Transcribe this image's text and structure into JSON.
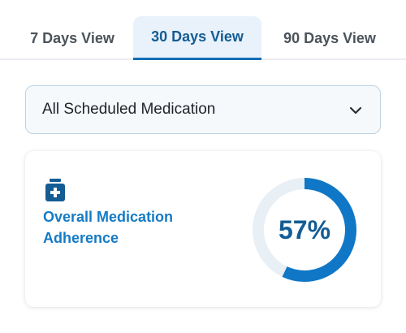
{
  "tabs": [
    {
      "label": "7 Days View",
      "selected": false
    },
    {
      "label": "30 Days View",
      "selected": true
    },
    {
      "label": "90 Days View",
      "selected": false
    }
  ],
  "filter": {
    "selected": "All Scheduled Medication",
    "icon": "chevron-down-icon"
  },
  "adherence_card": {
    "icon": "medication-bottle-icon",
    "title": "Overall Medication Adherence",
    "percent": 57,
    "percent_label": "57%"
  },
  "colors": {
    "accent": "#0f77c6",
    "accent_dark": "#145c94",
    "ring_track": "#e8eff5",
    "tab_selected_bg": "#e9f2fa"
  }
}
